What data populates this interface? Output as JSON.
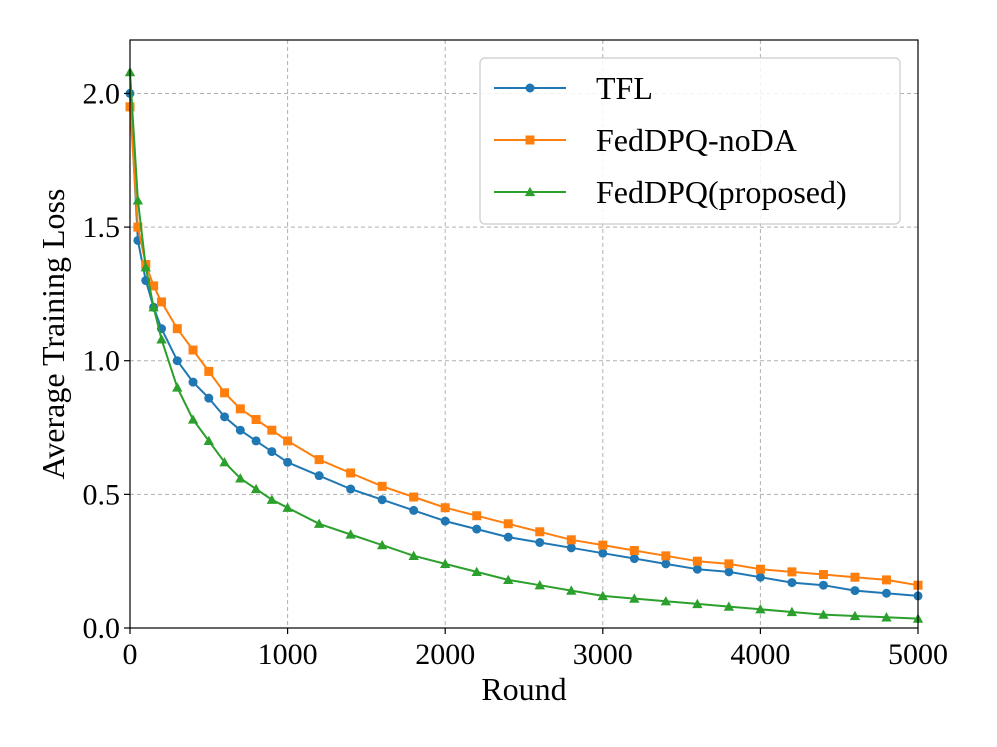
{
  "chart_data": {
    "type": "line",
    "title": "",
    "xlabel": "Round",
    "ylabel": "Average Training Loss",
    "xlim": [
      0,
      5000
    ],
    "ylim": [
      0,
      2.2
    ],
    "xticks": [
      0,
      1000,
      2000,
      3000,
      4000,
      5000
    ],
    "xtick_labels": [
      "0",
      "1000",
      "2000",
      "3000",
      "4000",
      "5000"
    ],
    "yticks": [
      0.0,
      0.5,
      1.0,
      1.5,
      2.0
    ],
    "ytick_labels": [
      "0.0",
      "0.5",
      "1.0",
      "1.5",
      "2.0"
    ],
    "grid": true,
    "legend_position": "top-right",
    "x": [
      0,
      50,
      100,
      150,
      200,
      300,
      400,
      500,
      600,
      700,
      800,
      900,
      1000,
      1200,
      1400,
      1600,
      1800,
      2000,
      2200,
      2400,
      2600,
      2800,
      3000,
      3200,
      3400,
      3600,
      3800,
      4000,
      4200,
      4400,
      4600,
      4800,
      5000
    ],
    "series": [
      {
        "name": "TFL",
        "color": "#1f77b4",
        "marker": "circle",
        "values": [
          2.0,
          1.45,
          1.3,
          1.2,
          1.12,
          1.0,
          0.92,
          0.86,
          0.79,
          0.74,
          0.7,
          0.66,
          0.62,
          0.57,
          0.52,
          0.48,
          0.44,
          0.4,
          0.37,
          0.34,
          0.32,
          0.3,
          0.28,
          0.26,
          0.24,
          0.22,
          0.21,
          0.19,
          0.17,
          0.16,
          0.14,
          0.13,
          0.12
        ]
      },
      {
        "name": "FedDPQ-noDA",
        "color": "#ff7f0e",
        "marker": "square",
        "values": [
          1.95,
          1.5,
          1.36,
          1.28,
          1.22,
          1.12,
          1.04,
          0.96,
          0.88,
          0.82,
          0.78,
          0.74,
          0.7,
          0.63,
          0.58,
          0.53,
          0.49,
          0.45,
          0.42,
          0.39,
          0.36,
          0.33,
          0.31,
          0.29,
          0.27,
          0.25,
          0.24,
          0.22,
          0.21,
          0.2,
          0.19,
          0.18,
          0.16
        ]
      },
      {
        "name": "FedDPQ(proposed)",
        "color": "#2ca02c",
        "marker": "triangle",
        "values": [
          2.08,
          1.6,
          1.35,
          1.2,
          1.08,
          0.9,
          0.78,
          0.7,
          0.62,
          0.56,
          0.52,
          0.48,
          0.45,
          0.39,
          0.35,
          0.31,
          0.27,
          0.24,
          0.21,
          0.18,
          0.16,
          0.14,
          0.12,
          0.11,
          0.1,
          0.09,
          0.08,
          0.07,
          0.06,
          0.05,
          0.045,
          0.04,
          0.035
        ]
      }
    ]
  }
}
